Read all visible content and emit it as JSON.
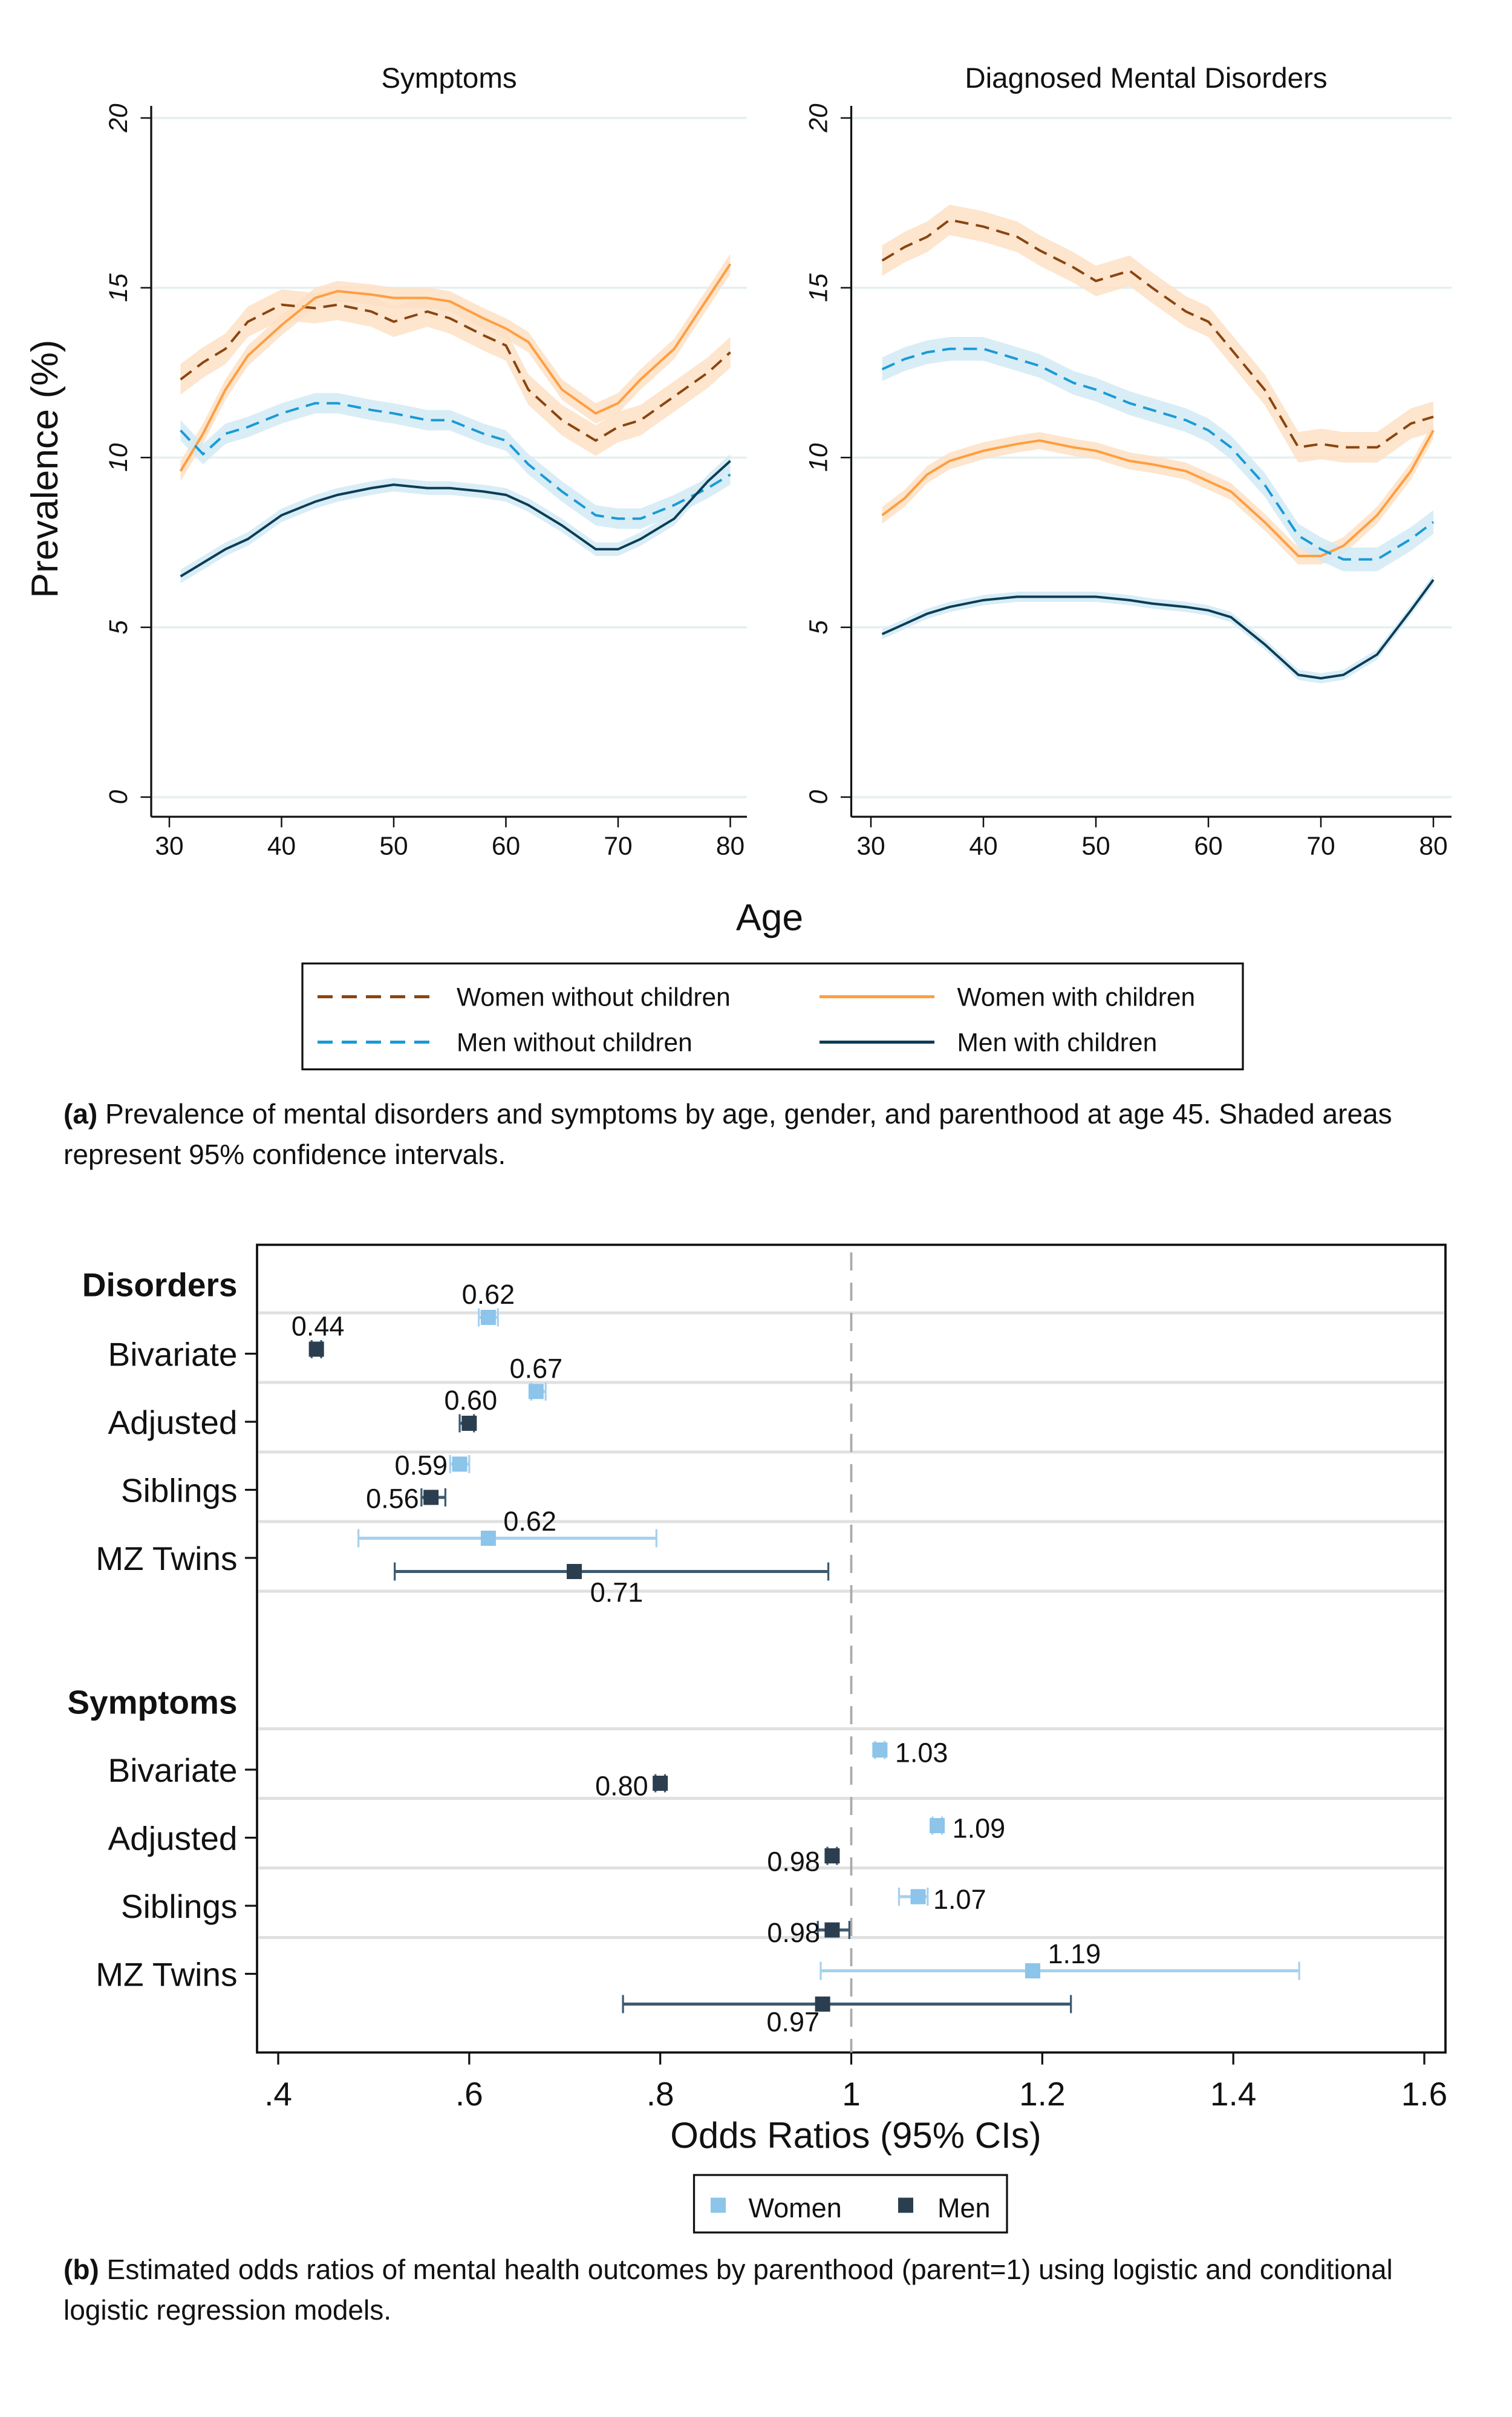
{
  "chart_data": [
    {
      "type": "line",
      "panel": "a",
      "ylabel": "Prevalence (%)",
      "xlabel": "Age",
      "xticks": [
        30,
        40,
        50,
        60,
        70,
        80
      ],
      "yticks": [
        0,
        5,
        10,
        15,
        20
      ],
      "xlim": [
        30,
        80
      ],
      "ylim": [
        0,
        20
      ],
      "grid": true,
      "confidence_band": "95% CI shaded",
      "legend": {
        "placement": "bottom",
        "entries": [
          {
            "key": "wnc",
            "label": "Women without children"
          },
          {
            "key": "wc",
            "label": "Women with children"
          },
          {
            "key": "mnc",
            "label": "Men without children"
          },
          {
            "key": "mc",
            "label": "Men with children"
          }
        ]
      },
      "styles": {
        "wnc": {
          "color": "#8a4510",
          "dash": true,
          "band": "#fde0c6"
        },
        "wc": {
          "color": "#ff9e40",
          "dash": false,
          "band": "#fde0c6"
        },
        "mnc": {
          "color": "#1a9ad6",
          "dash": true,
          "band": "#d2eaf4"
        },
        "mc": {
          "color": "#0b3d56",
          "dash": false,
          "band": "#d2eaf4"
        }
      },
      "x": [
        31,
        33,
        35,
        37,
        40,
        43,
        45,
        48,
        50,
        53,
        55,
        58,
        60,
        62,
        65,
        68,
        70,
        72,
        75,
        78,
        80
      ],
      "panels": [
        {
          "title": "Symptoms",
          "series": [
            {
              "key": "wnc",
              "ci_halfwidth": 0.45,
              "values": [
                12.3,
                12.8,
                13.2,
                14.0,
                14.5,
                14.4,
                14.5,
                14.3,
                14.0,
                14.3,
                14.1,
                13.6,
                13.3,
                12.0,
                11.1,
                10.5,
                10.9,
                11.1,
                11.8,
                12.5,
                13.1
              ]
            },
            {
              "key": "wc",
              "ci_halfwidth": 0.3,
              "values": [
                9.6,
                10.7,
                12.0,
                13.0,
                13.9,
                14.7,
                14.9,
                14.8,
                14.7,
                14.7,
                14.6,
                14.1,
                13.8,
                13.4,
                12.0,
                11.3,
                11.6,
                12.3,
                13.2,
                14.7,
                15.7
              ]
            },
            {
              "key": "mnc",
              "ci_halfwidth": 0.3,
              "values": [
                10.8,
                10.1,
                10.7,
                10.9,
                11.3,
                11.6,
                11.6,
                11.4,
                11.3,
                11.1,
                11.1,
                10.7,
                10.5,
                9.8,
                9.0,
                8.3,
                8.2,
                8.2,
                8.6,
                9.1,
                9.5
              ]
            },
            {
              "key": "mc",
              "ci_halfwidth": 0.2,
              "values": [
                6.5,
                6.9,
                7.3,
                7.6,
                8.3,
                8.7,
                8.9,
                9.1,
                9.2,
                9.1,
                9.1,
                9.0,
                8.9,
                8.6,
                8.0,
                7.3,
                7.3,
                7.6,
                8.2,
                9.3,
                9.9
              ]
            }
          ]
        },
        {
          "title": "Diagnosed Mental Disorders",
          "series": [
            {
              "key": "wnc",
              "ci_halfwidth": 0.45,
              "values": [
                15.8,
                16.2,
                16.5,
                17.0,
                16.8,
                16.5,
                16.1,
                15.6,
                15.2,
                15.5,
                15.0,
                14.3,
                14.0,
                13.2,
                12.0,
                10.3,
                10.4,
                10.3,
                10.3,
                11.0,
                11.2
              ]
            },
            {
              "key": "wc",
              "ci_halfwidth": 0.25,
              "values": [
                8.3,
                8.8,
                9.5,
                9.9,
                10.2,
                10.4,
                10.5,
                10.3,
                10.2,
                9.9,
                9.8,
                9.6,
                9.3,
                9.0,
                8.1,
                7.1,
                7.1,
                7.4,
                8.3,
                9.6,
                10.8
              ]
            },
            {
              "key": "mnc",
              "ci_halfwidth": 0.35,
              "values": [
                12.6,
                12.9,
                13.1,
                13.2,
                13.2,
                12.9,
                12.7,
                12.2,
                12.0,
                11.6,
                11.4,
                11.1,
                10.8,
                10.3,
                9.2,
                7.7,
                7.3,
                7.0,
                7.0,
                7.6,
                8.1
              ]
            },
            {
              "key": "mc",
              "ci_halfwidth": 0.15,
              "values": [
                4.8,
                5.1,
                5.4,
                5.6,
                5.8,
                5.9,
                5.9,
                5.9,
                5.9,
                5.8,
                5.7,
                5.6,
                5.5,
                5.3,
                4.5,
                3.6,
                3.5,
                3.6,
                4.2,
                5.5,
                6.4
              ]
            }
          ]
        }
      ]
    },
    {
      "type": "forest",
      "panel": "b",
      "xlabel": "Odds Ratios (95% CIs)",
      "xlim": [
        0.38,
        1.62
      ],
      "xticks": [
        0.4,
        0.6,
        0.8,
        1.0,
        1.2,
        1.4,
        1.6
      ],
      "xtick_labels": [
        ".4",
        ".6",
        ".8",
        "1",
        "1.2",
        "1.4",
        "1.6"
      ],
      "reference_line": 1,
      "colors": {
        "Women": "#8cc4ea",
        "Men": "#2b3e4f"
      },
      "legend": {
        "placement": "bottom",
        "entries": [
          "Women",
          "Men"
        ]
      },
      "groups": [
        {
          "title": "Disorders",
          "rows": [
            {
              "label": "Bivariate",
              "women": {
                "or": 0.62,
                "lo": 0.61,
                "hi": 0.63,
                "text": "0.62"
              },
              "men": {
                "or": 0.44,
                "lo": 0.435,
                "hi": 0.445,
                "text": "0.44"
              }
            },
            {
              "label": "Adjusted",
              "women": {
                "or": 0.67,
                "lo": 0.665,
                "hi": 0.68,
                "text": "0.67"
              },
              "men": {
                "or": 0.6,
                "lo": 0.59,
                "hi": 0.605,
                "text": "0.60"
              }
            },
            {
              "label": "Siblings",
              "women": {
                "or": 0.59,
                "lo": 0.58,
                "hi": 0.6,
                "text": "0.59"
              },
              "men": {
                "or": 0.56,
                "lo": 0.55,
                "hi": 0.575,
                "text": "0.56"
              }
            },
            {
              "label": "MZ Twins",
              "women": {
                "or": 0.62,
                "lo": 0.484,
                "hi": 0.796,
                "text": "0.62"
              },
              "men": {
                "or": 0.71,
                "lo": 0.522,
                "hi": 0.976,
                "text": "0.71"
              }
            }
          ]
        },
        {
          "title": "Symptoms",
          "rows": [
            {
              "label": "Bivariate",
              "women": {
                "or": 1.03,
                "lo": 1.025,
                "hi": 1.035,
                "text": "1.03"
              },
              "men": {
                "or": 0.8,
                "lo": 0.795,
                "hi": 0.805,
                "text": "0.80"
              }
            },
            {
              "label": "Adjusted",
              "women": {
                "or": 1.09,
                "lo": 1.085,
                "hi": 1.095,
                "text": "1.09"
              },
              "men": {
                "or": 0.98,
                "lo": 0.975,
                "hi": 0.985,
                "text": "0.98"
              }
            },
            {
              "label": "Siblings",
              "women": {
                "or": 1.07,
                "lo": 1.05,
                "hi": 1.08,
                "text": "1.07"
              },
              "men": {
                "or": 0.98,
                "lo": 0.965,
                "hi": 0.998,
                "text": "0.98"
              }
            },
            {
              "label": "MZ Twins",
              "women": {
                "or": 1.19,
                "lo": 0.968,
                "hi": 1.469,
                "text": "1.19"
              },
              "men": {
                "or": 0.97,
                "lo": 0.761,
                "hi": 1.23,
                "text": "0.97"
              }
            }
          ]
        }
      ]
    }
  ],
  "captions": {
    "a_label": "(a)",
    "a_text": " Prevalence of mental disorders and symptoms by age, gender, and parenthood at age 45. Shaded areas represent 95% confidence intervals.",
    "b_label": "(b)",
    "b_text": " Estimated odds ratios of mental health outcomes by parenthood (parent=1) using logistic and conditional logistic regression models."
  }
}
